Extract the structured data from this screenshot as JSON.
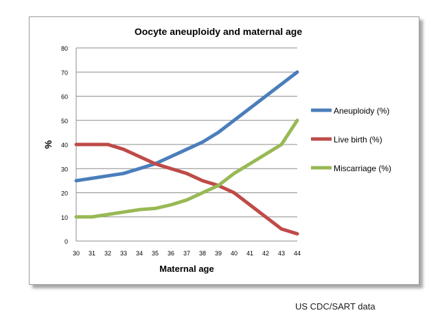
{
  "chart_data": {
    "type": "line",
    "title": "Oocyte aneuploidy  and  maternal age",
    "xlabel": "Maternal age",
    "ylabel": "%",
    "categories": [
      "30",
      "31",
      "32",
      "33",
      "34",
      "35",
      "36",
      "37",
      "38",
      "39",
      "40",
      "41",
      "42",
      "43",
      "44"
    ],
    "ylim": [
      0,
      80
    ],
    "yticks": [
      0,
      10,
      20,
      30,
      40,
      50,
      60,
      70,
      80
    ],
    "grid": true,
    "legend_position": "right",
    "series": [
      {
        "name": "Aneuploidy (%)",
        "color": "#4a7ebb",
        "values": [
          25,
          26,
          27,
          28,
          30,
          32,
          35,
          38,
          41,
          45,
          50,
          55,
          60,
          65,
          70
        ]
      },
      {
        "name": "Live birth  (%)",
        "color": "#be4b48",
        "values": [
          40,
          40,
          40,
          38,
          35,
          32,
          30,
          28,
          25,
          23,
          20,
          15,
          10,
          5,
          3
        ]
      },
      {
        "name": "Miscarriage  (%)",
        "color": "#98b954",
        "values": [
          10,
          10,
          11,
          12,
          13,
          13.5,
          15,
          17,
          20,
          23,
          28,
          32,
          36,
          40,
          50
        ]
      }
    ]
  },
  "footer": {
    "source": "US CDC/SART data"
  }
}
